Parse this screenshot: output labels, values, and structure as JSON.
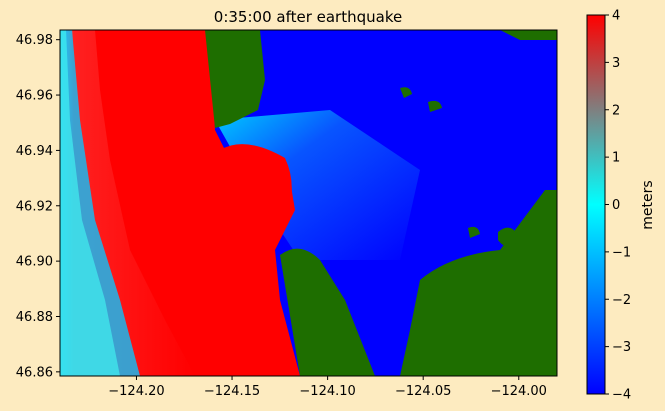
{
  "chart_data": {
    "type": "heatmap",
    "title": "0:35:00 after earthquake",
    "xlabel": "",
    "ylabel": "",
    "xlim": [
      -124.24,
      -123.98
    ],
    "ylim": [
      46.8585,
      46.9835
    ],
    "x_ticks": [
      -124.2,
      -124.15,
      -124.1,
      -124.05,
      -124.0
    ],
    "x_tick_labels": [
      "−124.20",
      "−124.15",
      "−124.10",
      "−124.05",
      "−124.00"
    ],
    "y_ticks": [
      46.86,
      46.88,
      46.9,
      46.92,
      46.94,
      46.96,
      46.98
    ],
    "y_tick_labels": [
      "46.86",
      "46.88",
      "46.90",
      "46.92",
      "46.94",
      "46.96",
      "46.98"
    ],
    "colorbar": {
      "label": "meters",
      "range": [
        -4,
        4
      ],
      "ticks": [
        4,
        3,
        2,
        1,
        0,
        -1,
        -2,
        -3,
        -4
      ],
      "tick_labels": [
        "4",
        "3",
        "2",
        "1",
        "0",
        "−1",
        "−2",
        "−3",
        "−4"
      ],
      "colors": [
        "#0000ff",
        "#00ffff",
        "#ff0000"
      ]
    },
    "land_color": "#1e6e00",
    "grid": false
  }
}
